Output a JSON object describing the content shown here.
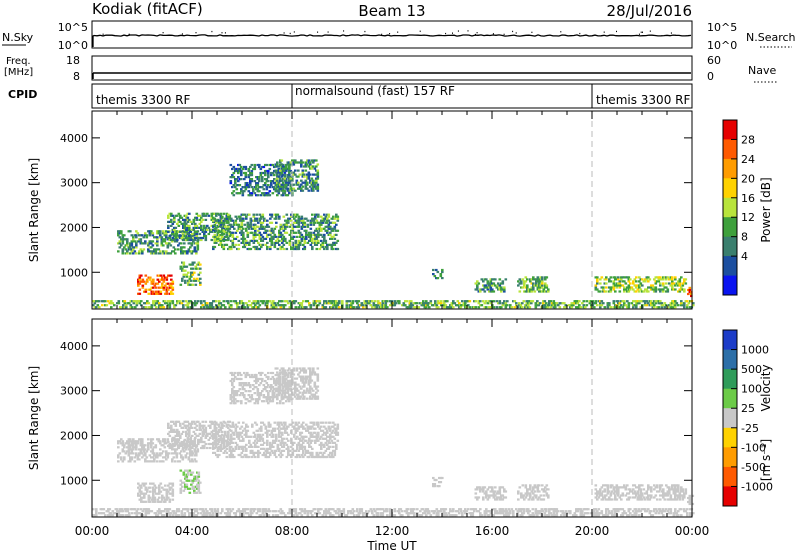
{
  "header": {
    "station": "Kodiak (fitACF)",
    "beam": "Beam 13",
    "date": "28/Jul/2016"
  },
  "noise_panel": {
    "left_label": "N.Sky",
    "right_label": "N.Search",
    "left_ticks": [
      "10^5",
      "10^0"
    ],
    "right_ticks": [
      "10^5",
      "10^0"
    ]
  },
  "freq_panel": {
    "left_label": "Freq.",
    "left_unit": "[MHz]",
    "left_ticks": [
      "18",
      "8"
    ],
    "right_label": "Nave",
    "right_ticks": [
      "60",
      "0"
    ]
  },
  "cpid_panel": {
    "label": "CPID",
    "modes": [
      {
        "name": "themis 3300 RF",
        "start_h": 0,
        "end_h": 8
      },
      {
        "name": "normalsound (fast) 157 RF",
        "start_h": 8,
        "end_h": 20
      },
      {
        "name": "themis 3300 RF",
        "start_h": 20,
        "end_h": 24
      }
    ]
  },
  "x_axis": {
    "label": "Time UT",
    "ticks": [
      "00:00",
      "04:00",
      "08:00",
      "12:00",
      "16:00",
      "20:00",
      "00:00"
    ],
    "range_hours": [
      0,
      24
    ]
  },
  "y_axis": {
    "label": "Slant Range [km]",
    "ticks": [
      "1000",
      "2000",
      "3000",
      "4000"
    ],
    "range_km": [
      180,
      4600
    ]
  },
  "power_colorbar": {
    "label": "Power [dB]",
    "ticks": [
      "28",
      "24",
      "20",
      "16",
      "12",
      "8",
      "4"
    ],
    "colors": [
      "#e60000",
      "#ff5a00",
      "#ff9c00",
      "#ffd200",
      "#b8e43c",
      "#3ea03c",
      "#3a7f6e",
      "#1c4fa0",
      "#0a14f0"
    ]
  },
  "velocity_colorbar": {
    "label": "Velocity",
    "unit": "[m s⁻¹]",
    "ticks": [
      "1000",
      "500",
      "100",
      "25",
      "-25",
      "-100",
      "-500",
      "-1000"
    ],
    "colors": [
      "#1c3cc8",
      "#2c6fa8",
      "#2f9c5a",
      "#6ccb48",
      "#c8c8c8",
      "#ffd200",
      "#ff9c00",
      "#ff5a00",
      "#e60000"
    ]
  },
  "chart_data": [
    {
      "type": "heatmap",
      "title": "Power",
      "xlabel": "Time UT",
      "ylabel": "Slant Range [km]",
      "xlim": [
        0,
        24
      ],
      "ylim": [
        180,
        4600
      ],
      "colorbar_label": "Power [dB]",
      "colorbar_range": [
        0,
        30
      ],
      "regions": [
        {
          "t": [
            1.0,
            4.2
          ],
          "r": [
            1400,
            1900
          ],
          "v": 10
        },
        {
          "t": [
            1.8,
            3.2
          ],
          "r": [
            500,
            950
          ],
          "v": 24
        },
        {
          "t": [
            3.0,
            5.5
          ],
          "r": [
            1700,
            2300
          ],
          "v": 10
        },
        {
          "t": [
            3.5,
            4.3
          ],
          "r": [
            700,
            1200
          ],
          "v": 12
        },
        {
          "t": [
            4.8,
            9.8
          ],
          "r": [
            1500,
            2300
          ],
          "v": 10
        },
        {
          "t": [
            5.5,
            8.0
          ],
          "r": [
            2700,
            3400
          ],
          "v": 8
        },
        {
          "t": [
            7.3,
            9.0
          ],
          "r": [
            2800,
            3500
          ],
          "v": 9
        },
        {
          "t": [
            13.6,
            14.0
          ],
          "r": [
            850,
            1050
          ],
          "v": 8
        },
        {
          "t": [
            15.3,
            16.5
          ],
          "r": [
            550,
            850
          ],
          "v": 10
        },
        {
          "t": [
            17.0,
            18.2
          ],
          "r": [
            550,
            900
          ],
          "v": 12
        },
        {
          "t": [
            20.1,
            23.7
          ],
          "r": [
            550,
            900
          ],
          "v": 14
        },
        {
          "t": [
            23.8,
            24.0
          ],
          "r": [
            450,
            700
          ],
          "v": 26
        },
        {
          "t": [
            0.0,
            24.0
          ],
          "r": [
            200,
            350
          ],
          "v": 12
        }
      ]
    },
    {
      "type": "heatmap",
      "title": "Velocity",
      "xlabel": "Time UT",
      "ylabel": "Slant Range [km]",
      "xlim": [
        0,
        24
      ],
      "ylim": [
        180,
        4600
      ],
      "colorbar_label": "Velocity [m s-1]",
      "colorbar_range": [
        -1000,
        1000
      ],
      "regions": [
        {
          "t": [
            1.0,
            4.2
          ],
          "r": [
            1400,
            1900
          ],
          "v": 0
        },
        {
          "t": [
            1.8,
            3.2
          ],
          "r": [
            500,
            950
          ],
          "v": 0
        },
        {
          "t": [
            3.0,
            5.5
          ],
          "r": [
            1700,
            2300
          ],
          "v": 0
        },
        {
          "t": [
            3.5,
            4.3
          ],
          "r": [
            700,
            1200
          ],
          "v": 100
        },
        {
          "t": [
            4.8,
            9.8
          ],
          "r": [
            1500,
            2300
          ],
          "v": 0
        },
        {
          "t": [
            5.5,
            8.0
          ],
          "r": [
            2700,
            3400
          ],
          "v": 0
        },
        {
          "t": [
            7.3,
            9.0
          ],
          "r": [
            2800,
            3500
          ],
          "v": 0
        },
        {
          "t": [
            13.6,
            14.0
          ],
          "r": [
            850,
            1050
          ],
          "v": 0
        },
        {
          "t": [
            15.3,
            16.5
          ],
          "r": [
            550,
            850
          ],
          "v": 0
        },
        {
          "t": [
            17.0,
            18.2
          ],
          "r": [
            550,
            900
          ],
          "v": 0
        },
        {
          "t": [
            20.1,
            23.7
          ],
          "r": [
            550,
            900
          ],
          "v": 0
        },
        {
          "t": [
            23.8,
            24.0
          ],
          "r": [
            450,
            700
          ],
          "v": 0
        },
        {
          "t": [
            0.0,
            24.0
          ],
          "r": [
            200,
            350
          ],
          "v": 0
        }
      ]
    }
  ]
}
